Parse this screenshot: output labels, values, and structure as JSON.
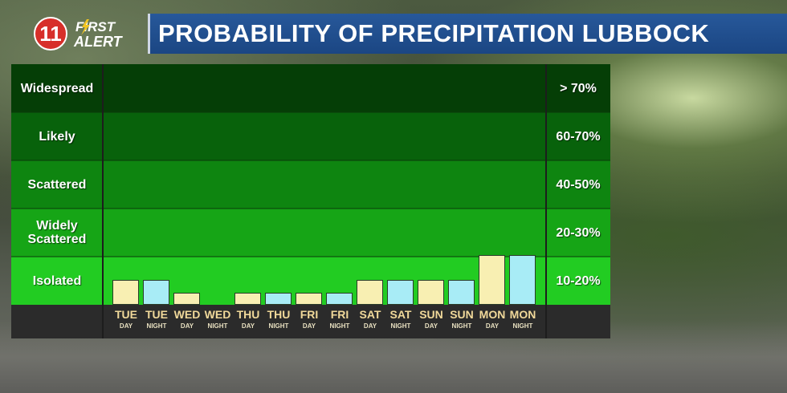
{
  "logo": {
    "number": "11",
    "line1": "FIRST",
    "line2": "ALERT",
    "icon": "lightning-bolt-icon",
    "accent": "#d72f2a"
  },
  "title": "PROBABILITY OF PRECIPITATION LUBBOCK",
  "chart_data": {
    "type": "bar",
    "title": "PROBABILITY OF PRECIPITATION LUBBOCK",
    "bands": [
      {
        "name": "Widespread",
        "range": "> 70%",
        "color": "#053e06"
      },
      {
        "name": "Likely",
        "range": "60-70%",
        "color": "#08620b"
      },
      {
        "name": "Scattered",
        "range": "40-50%",
        "color": "#0e8510"
      },
      {
        "name": "Widely Scattered",
        "range": "20-30%",
        "color": "#16a516"
      },
      {
        "name": "Isolated",
        "range": "10-20%",
        "color": "#22cc22"
      }
    ],
    "categories": [
      {
        "day": "TUE",
        "period": "DAY"
      },
      {
        "day": "TUE",
        "period": "NIGHT"
      },
      {
        "day": "WED",
        "period": "DAY"
      },
      {
        "day": "WED",
        "period": "NIGHT"
      },
      {
        "day": "THU",
        "period": "DAY"
      },
      {
        "day": "THU",
        "period": "NIGHT"
      },
      {
        "day": "FRI",
        "period": "DAY"
      },
      {
        "day": "FRI",
        "period": "NIGHT"
      },
      {
        "day": "SAT",
        "period": "DAY"
      },
      {
        "day": "SAT",
        "period": "NIGHT"
      },
      {
        "day": "SUN",
        "period": "DAY"
      },
      {
        "day": "SUN",
        "period": "NIGHT"
      },
      {
        "day": "MON",
        "period": "DAY"
      },
      {
        "day": "MON",
        "period": "NIGHT"
      }
    ],
    "values": [
      10,
      10,
      5,
      0,
      5,
      5,
      5,
      5,
      10,
      10,
      10,
      10,
      20,
      20
    ],
    "ylim": [
      0,
      20
    ],
    "colors": {
      "day": "#f8efb2",
      "night": "#a8ecf6"
    },
    "grid": false,
    "legend": "none"
  }
}
